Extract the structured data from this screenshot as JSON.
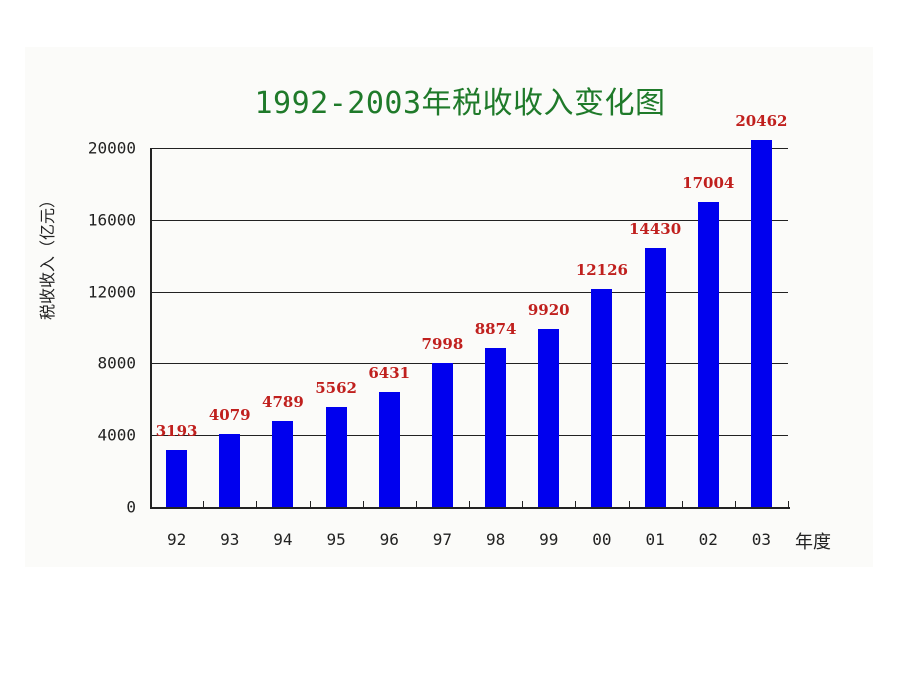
{
  "chart_data": {
    "type": "bar",
    "title": "1992-2003年税收收入变化图",
    "xlabel": "年度",
    "ylabel": "税收收入（亿元）",
    "categories": [
      "92",
      "93",
      "94",
      "95",
      "96",
      "97",
      "98",
      "99",
      "00",
      "01",
      "02",
      "03"
    ],
    "values": [
      3193,
      4079,
      4789,
      5562,
      6431,
      7998,
      8874,
      9920,
      12126,
      14430,
      17004,
      20462
    ],
    "ylim": [
      0,
      20000
    ],
    "yticks": [
      0,
      4000,
      8000,
      12000,
      16000,
      20000
    ],
    "grid": true,
    "data_labels": true,
    "legend": null,
    "colors": {
      "bar": "#0000ee",
      "data_label": "#c0201e",
      "title": "#1f7a2a",
      "axis": "#222222",
      "background": "#fbfbf9"
    }
  }
}
